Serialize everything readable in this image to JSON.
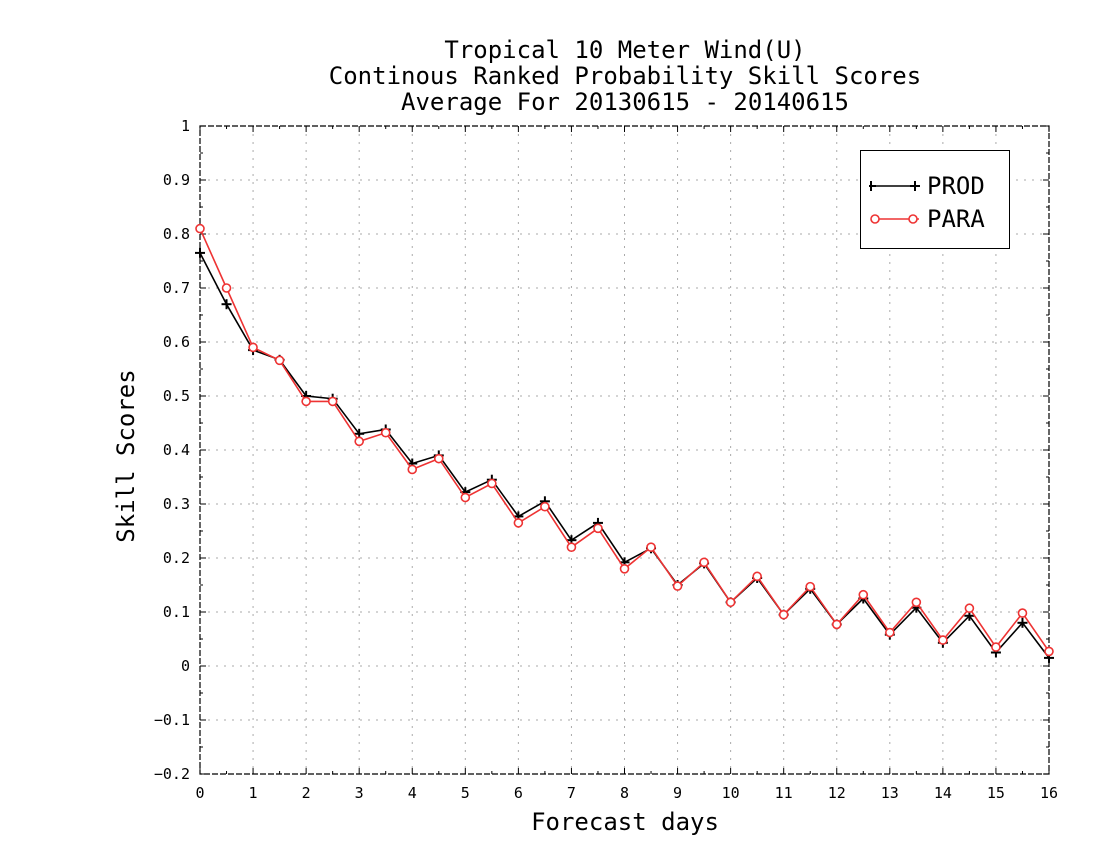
{
  "chart_data": {
    "type": "line",
    "title": [
      "Tropical 10 Meter Wind(U)",
      "Continous Ranked Probability Skill Scores",
      "Average For 20130615 - 20140615"
    ],
    "xlabel": "Forecast days",
    "ylabel": "Skill Scores",
    "xlim": [
      0,
      16
    ],
    "ylim": [
      -0.2,
      1
    ],
    "xticks": [
      "0",
      "1",
      "2",
      "3",
      "4",
      "5",
      "6",
      "7",
      "8",
      "9",
      "10",
      "11",
      "12",
      "13",
      "14",
      "15",
      "16"
    ],
    "yticks": [
      "−0.2",
      "−0.1",
      "0",
      "0.1",
      "0.2",
      "0.3",
      "0.4",
      "0.5",
      "0.6",
      "0.7",
      "0.8",
      "0.9",
      "1"
    ],
    "grid": true,
    "legend_position": "top-right",
    "x": [
      0,
      0.5,
      1,
      1.5,
      2,
      2.5,
      3,
      3.5,
      4,
      4.5,
      5,
      5.5,
      6,
      6.5,
      7,
      7.5,
      8,
      8.5,
      9,
      9.5,
      10,
      10.5,
      11,
      11.5,
      12,
      12.5,
      13,
      13.5,
      14,
      14.5,
      15,
      15.5,
      16
    ],
    "series": [
      {
        "name": "PROD",
        "color": "#000000",
        "marker": "plus",
        "values": [
          0.765,
          0.67,
          0.585,
          0.567,
          0.5,
          0.495,
          0.43,
          0.438,
          0.375,
          0.39,
          0.322,
          0.345,
          0.277,
          0.305,
          0.233,
          0.265,
          0.192,
          0.218,
          0.15,
          0.19,
          0.118,
          0.163,
          0.095,
          0.143,
          0.077,
          0.125,
          0.058,
          0.108,
          0.043,
          0.093,
          0.025,
          0.08,
          0.015
        ]
      },
      {
        "name": "PARA",
        "color": "#ee3333",
        "marker": "circle",
        "values": [
          0.81,
          0.7,
          0.59,
          0.566,
          0.49,
          0.49,
          0.416,
          0.432,
          0.364,
          0.384,
          0.312,
          0.338,
          0.265,
          0.295,
          0.22,
          0.255,
          0.18,
          0.22,
          0.148,
          0.192,
          0.118,
          0.166,
          0.095,
          0.147,
          0.077,
          0.132,
          0.062,
          0.118,
          0.048,
          0.107,
          0.035,
          0.098,
          0.027
        ]
      }
    ]
  }
}
